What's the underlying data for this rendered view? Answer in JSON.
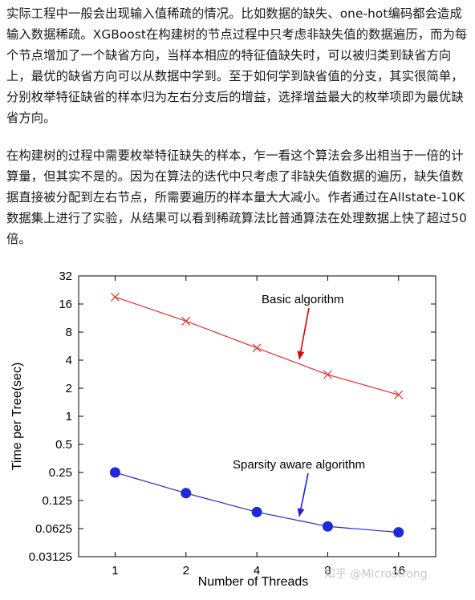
{
  "article": {
    "paragraphs": [
      "实际工程中一般会出现输入值稀疏的情况。比如数据的缺失、one-hot编码都会造成输入数据稀疏。XGBoost在构建树的节点过程中只考虑非缺失值的数据遍历，而为每个节点增加了一个缺省方向，当样本相应的特征值缺失时，可以被归类到缺省方向上，最优的缺省方向可以从数据中学到。至于如何学到缺省值的分支，其实很简单，分别枚举特征缺省的样本归为左右分支后的增益，选择增益最大的枚举项即为最优缺省方向。",
      "在构建树的过程中需要枚举特征缺失的样本，乍一看这个算法会多出相当于一倍的计算量，但其实不是的。因为在算法的迭代中只考虑了非缺失值数据的遍历，缺失值数据直接被分配到左右节点，所需要遍历的样本量大大减小。作者通过在Allstate-10K数据集上进行了实验，从结果可以看到稀疏算法比普通算法在处理数据上快了超过50倍。"
    ]
  },
  "figure": {
    "watermark": "知乎 @Microstrong"
  },
  "chart_data": {
    "type": "line",
    "title": "",
    "xlabel": "Number of Threads",
    "ylabel": "Time per Tree(sec)",
    "x": [
      1,
      2,
      4,
      8,
      16
    ],
    "x_scale": "log2",
    "y_scale": "log2",
    "xlim": [
      0.7,
      23
    ],
    "ylim": [
      0.03125,
      32
    ],
    "x_ticks": [
      "1",
      "2",
      "4",
      "8",
      "16"
    ],
    "y_ticks": [
      "0.03125",
      "0.0625",
      "0.125",
      "0.25",
      "0.5",
      "1",
      "2",
      "4",
      "8",
      "16",
      "32"
    ],
    "grid": false,
    "series": [
      {
        "name": "Basic algorithm",
        "color": "#e0302f",
        "marker": "x",
        "values": [
          19,
          10.5,
          5.4,
          2.8,
          1.7
        ]
      },
      {
        "name": "Sparsity aware algorithm",
        "color": "#1f2ad6",
        "marker": "filled-circle",
        "values": [
          0.25,
          0.15,
          0.094,
          0.066,
          0.057
        ]
      }
    ],
    "annotations": [
      {
        "text": "Basic algorithm",
        "arrow_color": "#dd0000"
      },
      {
        "text": "Sparsity aware algorithm",
        "arrow_color": "#1f1fdd"
      }
    ]
  }
}
